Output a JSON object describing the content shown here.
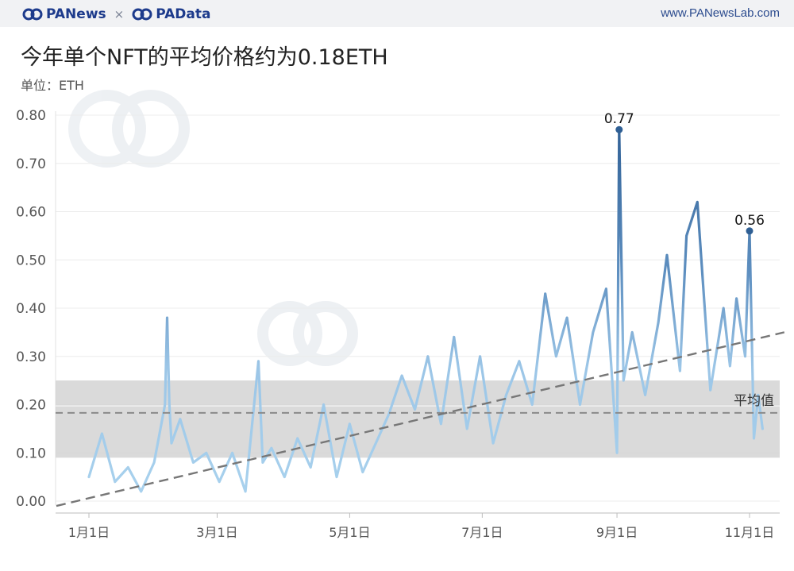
{
  "header": {
    "brand_left": "PANews",
    "brand_sep": "×",
    "brand_right": "PAData",
    "site_url": "www.PANewsLab.com"
  },
  "title": "今年单个NFT的平均价格约为0.18ETH",
  "unit_label": "单位：ETH",
  "colors": {
    "low": "#a9d2ee",
    "high": "#2f5f94",
    "band": "#d6d6d6",
    "trend": "#777777",
    "avg_line": "#8a8a8a"
  },
  "chart_data": {
    "type": "line",
    "title": "今年单个NFT的平均价格约为0.18ETH",
    "ylabel": "单位：ETH",
    "xlabel": "",
    "ylim": [
      0.0,
      0.8
    ],
    "yticks": [
      "0.00",
      "0.10",
      "0.20",
      "0.30",
      "0.40",
      "0.50",
      "0.60",
      "0.70",
      "0.80"
    ],
    "ytick_values": [
      0,
      0.1,
      0.2,
      0.3,
      0.4,
      0.5,
      0.6,
      0.7,
      0.8
    ],
    "xticks": [
      "1月1日",
      "3月1日",
      "5月1日",
      "7月1日",
      "9月1日",
      "11月1日"
    ],
    "xtick_days": [
      0,
      59,
      120,
      181,
      243,
      304
    ],
    "grid": true,
    "series": [
      {
        "x_days": [
          0,
          6,
          12,
          18,
          24,
          30,
          35,
          36,
          37,
          38,
          42,
          48,
          54,
          60,
          66,
          72,
          78,
          80,
          84,
          90,
          96,
          102,
          108,
          114,
          120,
          126,
          132,
          138,
          144,
          150,
          156,
          162,
          168,
          174,
          180,
          186,
          192,
          198,
          204,
          210,
          215,
          220,
          226,
          232,
          238,
          243,
          244,
          246,
          250,
          256,
          262,
          266,
          272,
          275,
          280,
          286,
          292,
          295,
          298,
          302,
          304,
          306,
          308,
          310
        ],
        "values": [
          0.05,
          0.14,
          0.04,
          0.07,
          0.02,
          0.08,
          0.2,
          0.38,
          0.2,
          0.12,
          0.17,
          0.08,
          0.1,
          0.04,
          0.1,
          0.02,
          0.29,
          0.08,
          0.11,
          0.05,
          0.13,
          0.07,
          0.2,
          0.05,
          0.16,
          0.06,
          0.12,
          0.18,
          0.26,
          0.19,
          0.3,
          0.16,
          0.34,
          0.15,
          0.3,
          0.12,
          0.22,
          0.29,
          0.2,
          0.43,
          0.3,
          0.38,
          0.2,
          0.35,
          0.44,
          0.1,
          0.77,
          0.25,
          0.35,
          0.22,
          0.37,
          0.51,
          0.27,
          0.55,
          0.62,
          0.23,
          0.4,
          0.28,
          0.42,
          0.3,
          0.56,
          0.13,
          0.22,
          0.15
        ]
      }
    ],
    "annotations": [
      {
        "label": "0.77",
        "x_day": 244,
        "value": 0.77
      },
      {
        "label": "0.56",
        "x_day": 304,
        "value": 0.56
      }
    ],
    "reference_line": {
      "label": "平均值",
      "value": 0.183
    },
    "band": {
      "from": 0.09,
      "to": 0.25
    },
    "trend": {
      "x_days": [
        -15,
        320
      ],
      "values": [
        -0.01,
        0.35
      ]
    }
  }
}
